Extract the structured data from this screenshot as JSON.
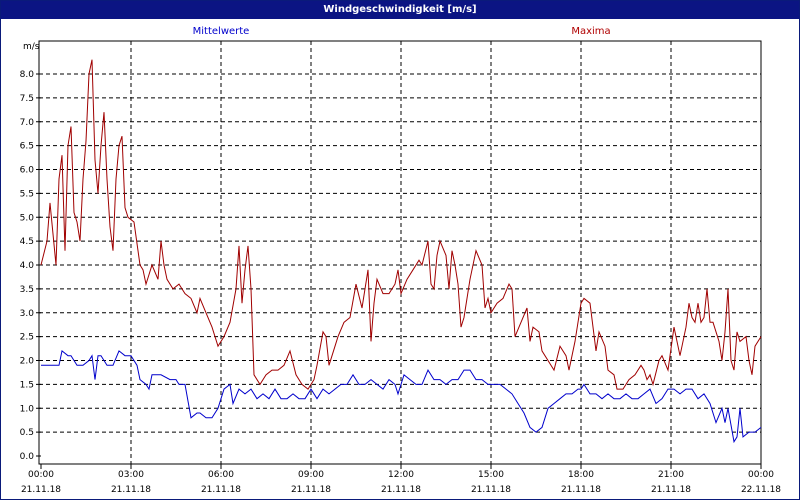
{
  "window": {
    "title": "Windgeschwindigkeit [m/s]"
  },
  "chart_data": {
    "type": "line",
    "title": "Windgeschwindigkeit [m/s]",
    "ylabel": "m/s",
    "ylim": [
      0,
      8.5
    ],
    "yticks": [
      "0.0",
      "0.5",
      "1.0",
      "1.5",
      "2.0",
      "2.5",
      "3.0",
      "3.5",
      "4.0",
      "4.5",
      "5.0",
      "5.5",
      "6.0",
      "6.5",
      "7.0",
      "7.5",
      "8.0"
    ],
    "xticks": [
      {
        "time": "00:00",
        "date": "21.11.18"
      },
      {
        "time": "03:00",
        "date": "21.11.18"
      },
      {
        "time": "06:00",
        "date": "21.11.18"
      },
      {
        "time": "09:00",
        "date": "21.11.18"
      },
      {
        "time": "12:00",
        "date": "21.11.18"
      },
      {
        "time": "15:00",
        "date": "21.11.18"
      },
      {
        "time": "18:00",
        "date": "21.11.18"
      },
      {
        "time": "21:00",
        "date": "21.11.18"
      },
      {
        "time": "00:00",
        "date": "22.11.18"
      }
    ],
    "xlim_hours": [
      0,
      24
    ],
    "grid": true,
    "series": [
      {
        "name": "Mittelwerte",
        "color": "#0000cc",
        "points": [
          [
            0,
            1.9
          ],
          [
            0.2,
            1.9
          ],
          [
            0.4,
            1.9
          ],
          [
            0.6,
            1.9
          ],
          [
            0.7,
            2.2
          ],
          [
            0.9,
            2.1
          ],
          [
            1.0,
            2.1
          ],
          [
            1.2,
            1.9
          ],
          [
            1.4,
            1.9
          ],
          [
            1.6,
            2.0
          ],
          [
            1.7,
            2.1
          ],
          [
            1.8,
            1.6
          ],
          [
            1.9,
            2.1
          ],
          [
            2.0,
            2.1
          ],
          [
            2.2,
            1.9
          ],
          [
            2.4,
            1.9
          ],
          [
            2.6,
            2.2
          ],
          [
            2.8,
            2.1
          ],
          [
            3.0,
            2.1
          ],
          [
            3.2,
            1.9
          ],
          [
            3.3,
            1.6
          ],
          [
            3.5,
            1.5
          ],
          [
            3.6,
            1.4
          ],
          [
            3.7,
            1.7
          ],
          [
            4.0,
            1.7
          ],
          [
            4.3,
            1.6
          ],
          [
            4.5,
            1.6
          ],
          [
            4.6,
            1.5
          ],
          [
            4.8,
            1.5
          ],
          [
            5.0,
            0.8
          ],
          [
            5.2,
            0.9
          ],
          [
            5.3,
            0.9
          ],
          [
            5.5,
            0.8
          ],
          [
            5.7,
            0.8
          ],
          [
            5.9,
            1.0
          ],
          [
            6.1,
            1.4
          ],
          [
            6.3,
            1.5
          ],
          [
            6.4,
            1.1
          ],
          [
            6.6,
            1.4
          ],
          [
            6.8,
            1.3
          ],
          [
            7.0,
            1.4
          ],
          [
            7.2,
            1.2
          ],
          [
            7.4,
            1.3
          ],
          [
            7.6,
            1.2
          ],
          [
            7.8,
            1.4
          ],
          [
            8.0,
            1.2
          ],
          [
            8.2,
            1.2
          ],
          [
            8.4,
            1.3
          ],
          [
            8.6,
            1.2
          ],
          [
            8.8,
            1.2
          ],
          [
            9.0,
            1.4
          ],
          [
            9.2,
            1.2
          ],
          [
            9.4,
            1.4
          ],
          [
            9.6,
            1.3
          ],
          [
            9.8,
            1.4
          ],
          [
            10.0,
            1.5
          ],
          [
            10.2,
            1.5
          ],
          [
            10.4,
            1.7
          ],
          [
            10.6,
            1.5
          ],
          [
            10.8,
            1.5
          ],
          [
            11.0,
            1.6
          ],
          [
            11.2,
            1.5
          ],
          [
            11.4,
            1.4
          ],
          [
            11.6,
            1.6
          ],
          [
            11.8,
            1.5
          ],
          [
            11.9,
            1.3
          ],
          [
            12.1,
            1.7
          ],
          [
            12.3,
            1.6
          ],
          [
            12.5,
            1.5
          ],
          [
            12.7,
            1.5
          ],
          [
            12.9,
            1.8
          ],
          [
            13.1,
            1.6
          ],
          [
            13.3,
            1.6
          ],
          [
            13.5,
            1.5
          ],
          [
            13.7,
            1.6
          ],
          [
            13.9,
            1.6
          ],
          [
            14.1,
            1.8
          ],
          [
            14.3,
            1.8
          ],
          [
            14.5,
            1.6
          ],
          [
            14.7,
            1.6
          ],
          [
            14.9,
            1.5
          ],
          [
            15.1,
            1.5
          ],
          [
            15.3,
            1.5
          ],
          [
            15.5,
            1.4
          ],
          [
            15.7,
            1.3
          ],
          [
            15.9,
            1.1
          ],
          [
            16.1,
            0.9
          ],
          [
            16.3,
            0.6
          ],
          [
            16.5,
            0.5
          ],
          [
            16.7,
            0.6
          ],
          [
            16.9,
            1.0
          ],
          [
            17.1,
            1.1
          ],
          [
            17.3,
            1.2
          ],
          [
            17.5,
            1.3
          ],
          [
            17.7,
            1.3
          ],
          [
            17.9,
            1.4
          ],
          [
            18.0,
            1.4
          ],
          [
            18.1,
            1.5
          ],
          [
            18.3,
            1.3
          ],
          [
            18.5,
            1.3
          ],
          [
            18.7,
            1.2
          ],
          [
            18.9,
            1.3
          ],
          [
            19.1,
            1.2
          ],
          [
            19.3,
            1.2
          ],
          [
            19.5,
            1.3
          ],
          [
            19.7,
            1.2
          ],
          [
            19.9,
            1.2
          ],
          [
            20.1,
            1.3
          ],
          [
            20.3,
            1.4
          ],
          [
            20.5,
            1.1
          ],
          [
            20.7,
            1.2
          ],
          [
            20.9,
            1.4
          ],
          [
            21.1,
            1.4
          ],
          [
            21.3,
            1.3
          ],
          [
            21.5,
            1.4
          ],
          [
            21.7,
            1.4
          ],
          [
            21.9,
            1.2
          ],
          [
            22.1,
            1.3
          ],
          [
            22.3,
            1.1
          ],
          [
            22.5,
            0.7
          ],
          [
            22.7,
            1.0
          ],
          [
            22.8,
            0.7
          ],
          [
            22.9,
            1.0
          ],
          [
            23.1,
            0.3
          ],
          [
            23.2,
            0.4
          ],
          [
            23.3,
            1.0
          ],
          [
            23.4,
            0.4
          ],
          [
            23.6,
            0.5
          ],
          [
            23.8,
            0.5
          ],
          [
            24.0,
            0.6
          ]
        ]
      },
      {
        "name": "Maxima",
        "color": "#a00000",
        "points": [
          [
            0,
            4.0
          ],
          [
            0.2,
            4.5
          ],
          [
            0.3,
            5.3
          ],
          [
            0.5,
            4.0
          ],
          [
            0.6,
            5.8
          ],
          [
            0.7,
            6.3
          ],
          [
            0.8,
            4.3
          ],
          [
            0.9,
            6.5
          ],
          [
            1.0,
            6.9
          ],
          [
            1.1,
            5.1
          ],
          [
            1.2,
            4.9
          ],
          [
            1.3,
            4.5
          ],
          [
            1.4,
            5.8
          ],
          [
            1.5,
            6.6
          ],
          [
            1.6,
            8.0
          ],
          [
            1.7,
            8.3
          ],
          [
            1.8,
            6.2
          ],
          [
            1.9,
            5.5
          ],
          [
            2.0,
            6.5
          ],
          [
            2.1,
            7.2
          ],
          [
            2.2,
            5.8
          ],
          [
            2.3,
            4.8
          ],
          [
            2.4,
            4.3
          ],
          [
            2.5,
            5.8
          ],
          [
            2.6,
            6.5
          ],
          [
            2.7,
            6.7
          ],
          [
            2.8,
            5.2
          ],
          [
            2.9,
            5.0
          ],
          [
            3.1,
            4.9
          ],
          [
            3.3,
            4.0
          ],
          [
            3.4,
            3.9
          ],
          [
            3.5,
            3.6
          ],
          [
            3.6,
            3.8
          ],
          [
            3.7,
            4.0
          ],
          [
            3.9,
            3.7
          ],
          [
            4.0,
            4.5
          ],
          [
            4.1,
            4.0
          ],
          [
            4.2,
            3.7
          ],
          [
            4.4,
            3.5
          ],
          [
            4.6,
            3.6
          ],
          [
            4.7,
            3.5
          ],
          [
            4.8,
            3.4
          ],
          [
            5.0,
            3.3
          ],
          [
            5.2,
            3.0
          ],
          [
            5.3,
            3.3
          ],
          [
            5.5,
            3.0
          ],
          [
            5.7,
            2.7
          ],
          [
            5.8,
            2.5
          ],
          [
            5.9,
            2.3
          ],
          [
            6.1,
            2.5
          ],
          [
            6.3,
            2.8
          ],
          [
            6.5,
            3.5
          ],
          [
            6.6,
            4.4
          ],
          [
            6.7,
            3.2
          ],
          [
            6.8,
            3.9
          ],
          [
            6.9,
            4.4
          ],
          [
            7.0,
            3.5
          ],
          [
            7.1,
            1.7
          ],
          [
            7.3,
            1.5
          ],
          [
            7.5,
            1.7
          ],
          [
            7.7,
            1.8
          ],
          [
            7.9,
            1.8
          ],
          [
            8.1,
            1.9
          ],
          [
            8.3,
            2.2
          ],
          [
            8.5,
            1.7
          ],
          [
            8.7,
            1.5
          ],
          [
            8.9,
            1.4
          ],
          [
            9.1,
            1.6
          ],
          [
            9.2,
            1.9
          ],
          [
            9.4,
            2.6
          ],
          [
            9.5,
            2.5
          ],
          [
            9.6,
            1.9
          ],
          [
            9.8,
            2.3
          ],
          [
            9.9,
            2.5
          ],
          [
            10.1,
            2.8
          ],
          [
            10.3,
            2.9
          ],
          [
            10.5,
            3.6
          ],
          [
            10.7,
            3.1
          ],
          [
            10.9,
            3.9
          ],
          [
            11.0,
            2.4
          ],
          [
            11.1,
            3.2
          ],
          [
            11.2,
            3.7
          ],
          [
            11.4,
            3.4
          ],
          [
            11.6,
            3.4
          ],
          [
            11.8,
            3.6
          ],
          [
            11.9,
            3.9
          ],
          [
            12.0,
            3.4
          ],
          [
            12.2,
            3.7
          ],
          [
            12.4,
            3.9
          ],
          [
            12.6,
            4.1
          ],
          [
            12.7,
            4.0
          ],
          [
            12.9,
            4.5
          ],
          [
            13.0,
            3.6
          ],
          [
            13.1,
            3.5
          ],
          [
            13.2,
            4.2
          ],
          [
            13.3,
            4.5
          ],
          [
            13.5,
            4.2
          ],
          [
            13.6,
            3.5
          ],
          [
            13.7,
            4.3
          ],
          [
            13.8,
            4.0
          ],
          [
            13.9,
            3.6
          ],
          [
            14.0,
            2.7
          ],
          [
            14.1,
            2.9
          ],
          [
            14.3,
            3.7
          ],
          [
            14.5,
            4.3
          ],
          [
            14.7,
            4.0
          ],
          [
            14.8,
            3.1
          ],
          [
            14.9,
            3.3
          ],
          [
            15.0,
            3.0
          ],
          [
            15.2,
            3.2
          ],
          [
            15.4,
            3.3
          ],
          [
            15.6,
            3.6
          ],
          [
            15.7,
            3.5
          ],
          [
            15.8,
            2.5
          ],
          [
            16.0,
            2.8
          ],
          [
            16.2,
            3.1
          ],
          [
            16.3,
            2.4
          ],
          [
            16.4,
            2.7
          ],
          [
            16.6,
            2.6
          ],
          [
            16.7,
            2.2
          ],
          [
            16.9,
            2.0
          ],
          [
            17.1,
            1.8
          ],
          [
            17.3,
            2.3
          ],
          [
            17.5,
            2.1
          ],
          [
            17.6,
            1.8
          ],
          [
            17.8,
            2.4
          ],
          [
            18.0,
            3.2
          ],
          [
            18.1,
            3.3
          ],
          [
            18.3,
            3.2
          ],
          [
            18.5,
            2.2
          ],
          [
            18.6,
            2.6
          ],
          [
            18.8,
            2.3
          ],
          [
            18.9,
            1.8
          ],
          [
            19.1,
            1.7
          ],
          [
            19.2,
            1.4
          ],
          [
            19.4,
            1.4
          ],
          [
            19.6,
            1.6
          ],
          [
            19.8,
            1.7
          ],
          [
            20.0,
            1.9
          ],
          [
            20.1,
            1.8
          ],
          [
            20.2,
            1.6
          ],
          [
            20.3,
            1.7
          ],
          [
            20.4,
            1.5
          ],
          [
            20.6,
            2.0
          ],
          [
            20.7,
            2.1
          ],
          [
            20.9,
            1.8
          ],
          [
            21.1,
            2.7
          ],
          [
            21.3,
            2.1
          ],
          [
            21.5,
            2.7
          ],
          [
            21.6,
            3.2
          ],
          [
            21.7,
            2.9
          ],
          [
            21.8,
            2.8
          ],
          [
            21.9,
            3.2
          ],
          [
            22.0,
            2.8
          ],
          [
            22.1,
            2.9
          ],
          [
            22.2,
            3.5
          ],
          [
            22.3,
            2.8
          ],
          [
            22.4,
            2.8
          ],
          [
            22.6,
            2.4
          ],
          [
            22.7,
            2.0
          ],
          [
            22.8,
            2.6
          ],
          [
            22.9,
            3.5
          ],
          [
            23.0,
            2.0
          ],
          [
            23.1,
            1.8
          ],
          [
            23.2,
            2.6
          ],
          [
            23.3,
            2.4
          ],
          [
            23.5,
            2.5
          ],
          [
            23.6,
            2.0
          ],
          [
            23.7,
            1.7
          ],
          [
            23.8,
            2.3
          ],
          [
            24.0,
            2.5
          ]
        ]
      }
    ]
  }
}
